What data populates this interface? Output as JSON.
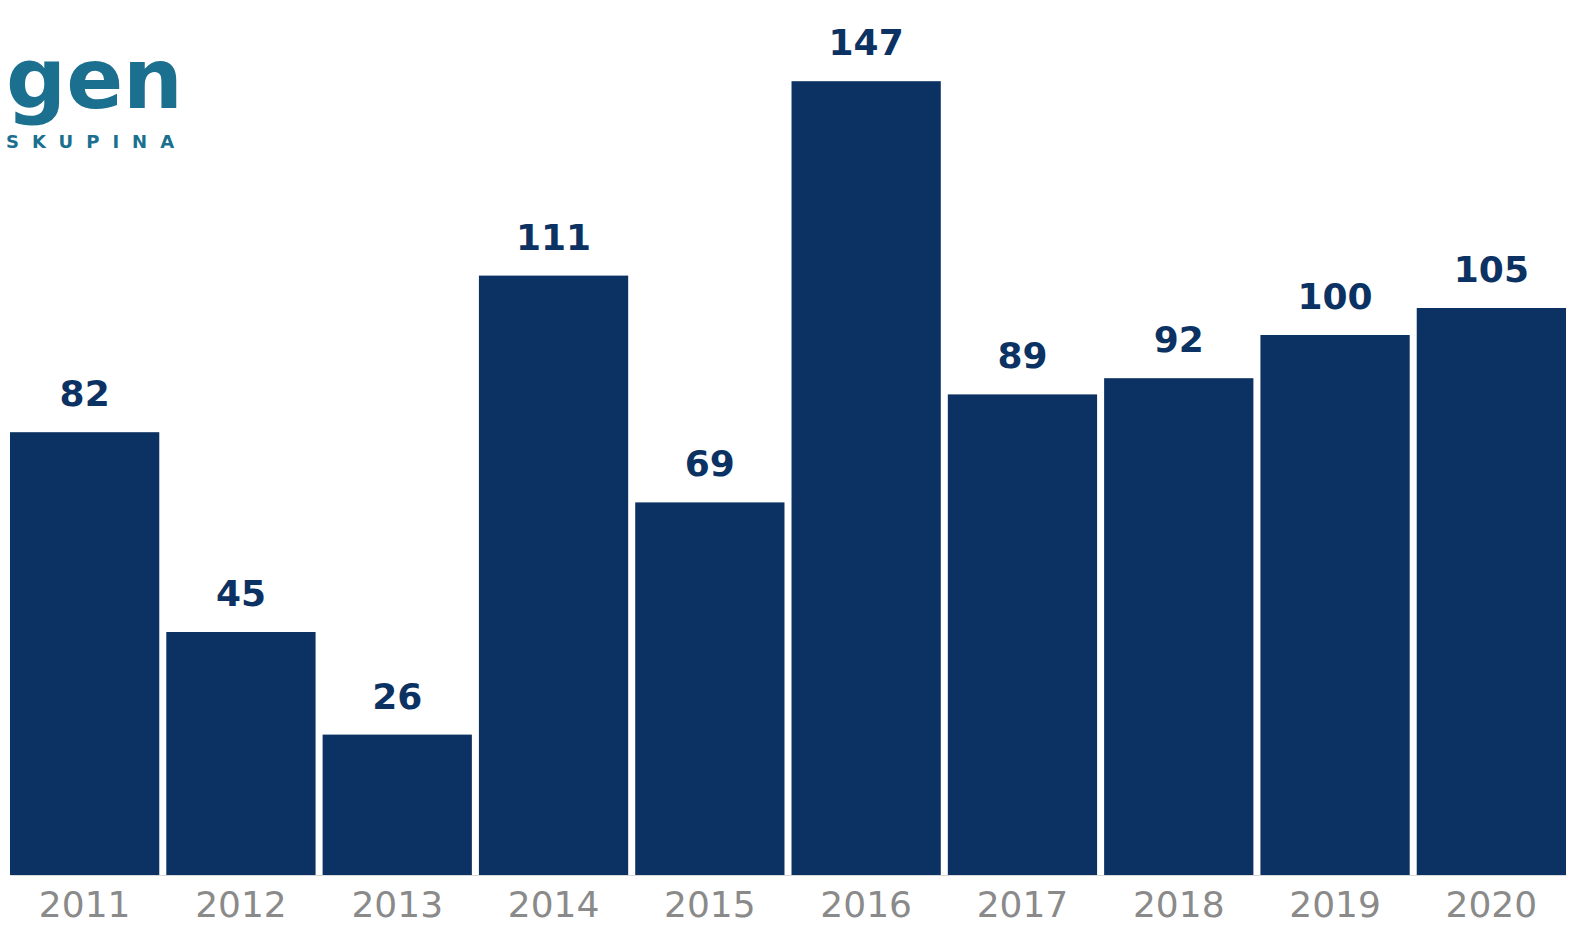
{
  "chart_data": {
    "type": "bar",
    "title": "gen",
    "subtitle": "SKUPINA",
    "categories": [
      "2011",
      "2012",
      "2013",
      "2014",
      "2015",
      "2016",
      "2017",
      "2018",
      "2019",
      "2020"
    ],
    "values": [
      82,
      45,
      26,
      111,
      69,
      147,
      89,
      92,
      100,
      105
    ],
    "color": "#0b3262",
    "ylim": [
      0,
      150
    ],
    "data_labels": true,
    "tick_labels": "x",
    "grid": false
  }
}
